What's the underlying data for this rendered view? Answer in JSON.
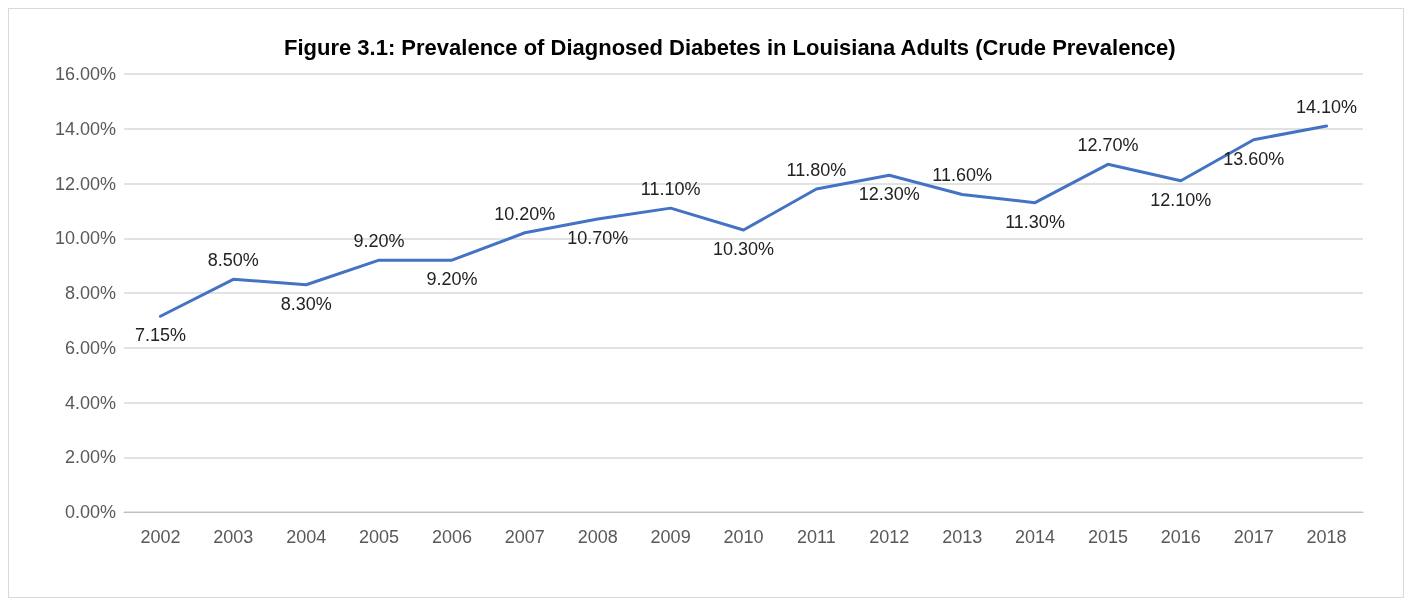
{
  "chart_data": {
    "type": "line",
    "title": "Figure 3.1: Prevalence of Diagnosed Diabetes in Louisiana Adults (Crude Prevalence)",
    "categories": [
      "2002",
      "2003",
      "2004",
      "2005",
      "2006",
      "2007",
      "2008",
      "2009",
      "2010",
      "2011",
      "2012",
      "2013",
      "2014",
      "2015",
      "2016",
      "2017",
      "2018"
    ],
    "series": [
      {
        "color": "#4472c4",
        "values": [
          7.15,
          8.5,
          8.3,
          9.2,
          9.2,
          10.2,
          10.7,
          11.1,
          10.3,
          11.8,
          12.3,
          11.6,
          11.3,
          12.7,
          12.1,
          13.6,
          14.1
        ],
        "value_labels": [
          "7.15%",
          "8.50%",
          "8.30%",
          "9.20%",
          "9.20%",
          "10.20%",
          "10.70%",
          "11.10%",
          "10.30%",
          "11.80%",
          "12.30%",
          "11.60%",
          "11.30%",
          "12.70%",
          "12.10%",
          "13.60%",
          "14.10%"
        ]
      }
    ],
    "ylim": [
      0,
      16
    ],
    "yticks": [
      {
        "value": 0,
        "label": "0.00%"
      },
      {
        "value": 2,
        "label": "2.00%"
      },
      {
        "value": 4,
        "label": "4.00%"
      },
      {
        "value": 6,
        "label": "6.00%"
      },
      {
        "value": 8,
        "label": "8.00%"
      },
      {
        "value": 10,
        "label": "10.00%"
      },
      {
        "value": 12,
        "label": "12.00%"
      },
      {
        "value": 14,
        "label": "14.00%"
      },
      {
        "value": 16,
        "label": "16.00%"
      }
    ],
    "grid": "y",
    "marker": "none",
    "line_style": "solid"
  }
}
